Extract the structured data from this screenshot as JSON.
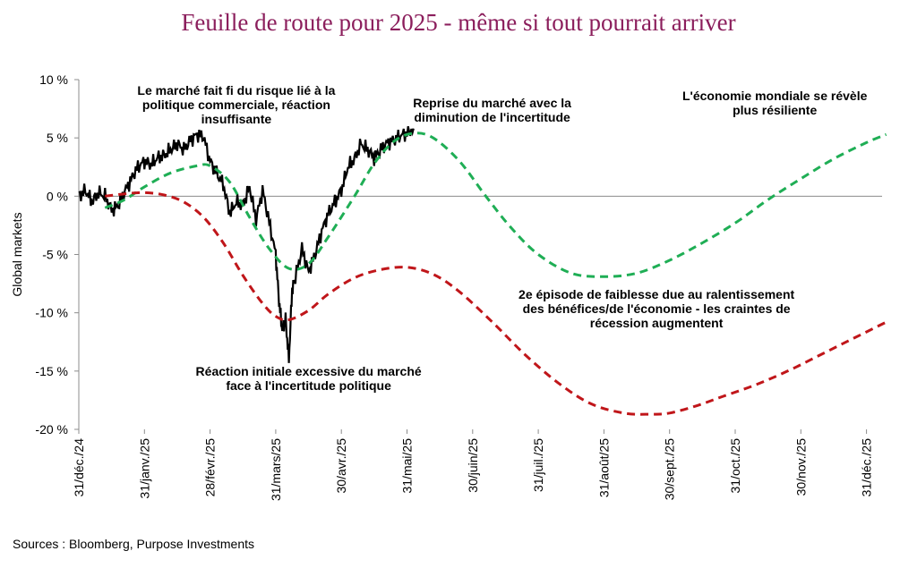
{
  "chart_data": {
    "type": "line",
    "title": "Feuille de route pour 2025 - même si tout pourrait arriver",
    "ylabel": "Global markets",
    "xlabel": "",
    "ylim": [
      -20,
      10
    ],
    "y_ticks": [
      10,
      5,
      0,
      -5,
      -10,
      -15,
      -20
    ],
    "y_tick_labels": [
      "10 %",
      "5 %",
      "0 %",
      "-5 %",
      "-10 %",
      "-15 %",
      "-20 %"
    ],
    "x_tick_labels": [
      "31/déc./24",
      "31/janv./25",
      "28/févr./25",
      "31/mars/25",
      "30/avr./25",
      "31/mai/25",
      "30/juin/25",
      "31/juil./25",
      "31/août/25",
      "30/sept./25",
      "31/oct./25",
      "30/nov./25",
      "31/déc./25"
    ],
    "x_tick_positions": [
      0,
      1,
      2,
      3,
      4,
      5,
      6,
      7,
      8,
      9,
      10,
      11,
      12
    ],
    "xlim": [
      0,
      12.3
    ],
    "grid": false,
    "legend": "none",
    "series": [
      {
        "kind": "actual",
        "color": "#000000",
        "x": [
          0.0,
          0.1,
          0.2,
          0.3,
          0.4,
          0.5,
          0.6,
          0.7,
          0.8,
          0.9,
          1.0,
          1.1,
          1.2,
          1.3,
          1.4,
          1.5,
          1.6,
          1.7,
          1.8,
          1.9,
          2.0,
          2.1,
          2.2,
          2.3,
          2.4,
          2.5,
          2.6,
          2.7,
          2.8,
          2.9,
          3.0,
          3.05,
          3.1,
          3.15,
          3.2,
          3.25,
          3.3,
          3.4,
          3.5,
          3.6,
          3.7,
          3.8,
          3.9,
          4.0,
          4.1,
          4.2,
          4.3,
          4.4,
          4.5,
          4.6,
          4.7,
          4.8,
          4.9,
          5.0,
          5.1
        ],
        "y": [
          0.0,
          0.5,
          -0.5,
          0.3,
          0.0,
          -1.2,
          -0.8,
          0.4,
          1.5,
          2.5,
          3.0,
          2.7,
          3.3,
          3.5,
          4.0,
          4.5,
          4.0,
          4.8,
          5.3,
          5.1,
          3.0,
          2.0,
          1.0,
          -1.5,
          -0.5,
          -0.8,
          0.8,
          -2.0,
          0.5,
          -2.2,
          -5.0,
          -9.0,
          -11.5,
          -10.5,
          -14.0,
          -8.0,
          -7.0,
          -4.5,
          -6.5,
          -5.0,
          -3.0,
          -1.5,
          -0.5,
          0.5,
          2.5,
          3.2,
          4.5,
          4.0,
          3.3,
          4.0,
          4.6,
          4.8,
          5.2,
          5.4,
          5.8
        ]
      },
      {
        "kind": "scenario-green",
        "color": "#1fae55",
        "x": [
          0.4,
          0.7,
          1.0,
          1.4,
          1.8,
          2.0,
          2.3,
          2.6,
          2.9,
          3.2,
          3.5,
          3.8,
          4.2,
          4.5,
          4.8,
          5.1,
          5.4,
          5.8,
          6.2,
          6.6,
          7.0,
          7.5,
          8.0,
          8.5,
          9.0,
          9.5,
          10.0,
          10.5,
          11.0,
          11.5,
          12.0,
          12.3
        ],
        "y": [
          -1.0,
          -0.3,
          0.8,
          2.0,
          2.6,
          2.6,
          1.2,
          -1.8,
          -4.5,
          -6.2,
          -5.8,
          -3.5,
          0.0,
          2.8,
          4.7,
          5.4,
          5.0,
          3.0,
          0.0,
          -2.8,
          -5.0,
          -6.6,
          -6.9,
          -6.6,
          -5.5,
          -4.0,
          -2.3,
          -0.3,
          1.5,
          3.2,
          4.6,
          5.3
        ]
      },
      {
        "kind": "scenario-red",
        "color": "#c0161a",
        "x": [
          0.4,
          0.7,
          1.0,
          1.3,
          1.6,
          1.9,
          2.2,
          2.5,
          2.8,
          3.0,
          3.2,
          3.5,
          3.8,
          4.2,
          4.6,
          5.0,
          5.4,
          5.8,
          6.3,
          6.8,
          7.3,
          7.8,
          8.3,
          8.7,
          9.0,
          9.4,
          9.8,
          10.3,
          10.8,
          11.3,
          11.8,
          12.3
        ],
        "y": [
          0.0,
          0.2,
          0.3,
          0.1,
          -0.5,
          -1.8,
          -4.0,
          -6.8,
          -9.2,
          -10.3,
          -10.6,
          -9.8,
          -8.4,
          -7.0,
          -6.3,
          -6.1,
          -6.7,
          -8.2,
          -10.8,
          -13.6,
          -16.0,
          -17.8,
          -18.6,
          -18.7,
          -18.6,
          -18.0,
          -17.2,
          -16.2,
          -15.0,
          -13.6,
          -12.2,
          -10.8
        ]
      }
    ],
    "annotations": [
      {
        "lines": [
          "Le marché fait fi du risque lié à la",
          "politique commerciale, réaction",
          "insuffisante"
        ],
        "x": 2.4,
        "y": 9.7
      },
      {
        "lines": [
          "Reprise du marché avec la",
          "diminution de l'incertitude"
        ],
        "x": 6.3,
        "y": 8.6
      },
      {
        "lines": [
          "L'économie mondiale se révèle",
          "plus résiliente"
        ],
        "x": 10.6,
        "y": 9.2
      },
      {
        "lines": [
          "Réaction initiale excessive du marché",
          "face à l'incertitude politique"
        ],
        "x": 3.5,
        "y": -14.4
      },
      {
        "lines": [
          "2e épisode de faiblesse due au ralentissement",
          "des bénéfices/de l'économie - les craintes de",
          "récession augmentent"
        ],
        "x": 8.8,
        "y": -7.8
      }
    ]
  },
  "source": "Sources : Bloomberg, Purpose Investments"
}
